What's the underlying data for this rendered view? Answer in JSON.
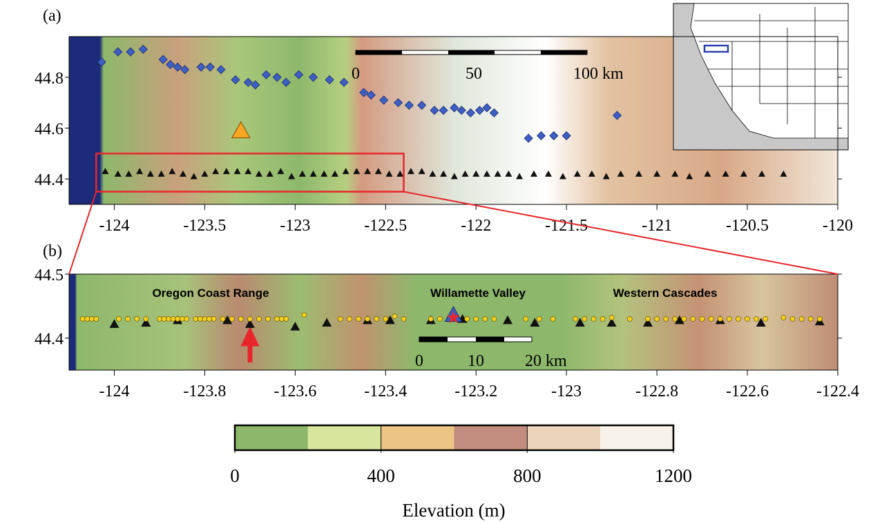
{
  "panel_a": {
    "label": "(a)",
    "xlim": [
      -124.25,
      -120
    ],
    "ylim": [
      44.3,
      44.96
    ],
    "xticks": [
      -124,
      -123.5,
      -123,
      -122.5,
      -122,
      -121.5,
      -121,
      -120.5,
      -120
    ],
    "yticks": [
      44.4,
      44.6,
      44.8
    ],
    "scale_bar": [
      "0",
      "50",
      "100 km"
    ],
    "diamonds": {
      "lon": [
        -124.07,
        -123.98,
        -123.91,
        -123.84,
        -123.73,
        -123.69,
        -123.65,
        -123.61,
        -123.52,
        -123.47,
        -123.41,
        -123.33,
        -123.26,
        -123.22,
        -123.16,
        -123.1,
        -123.05,
        -122.98,
        -122.9,
        -122.81,
        -122.73,
        -122.62,
        -122.58,
        -122.51,
        -122.43,
        -122.37,
        -122.3,
        -122.23,
        -122.18,
        -122.12,
        -122.08,
        -122.03,
        -121.98,
        -121.94,
        -121.9,
        -121.71,
        -121.64,
        -121.57,
        -121.5,
        -121.22
      ],
      "lat": [
        44.86,
        44.9,
        44.9,
        44.91,
        44.87,
        44.85,
        44.84,
        44.83,
        44.84,
        44.84,
        44.83,
        44.79,
        44.78,
        44.77,
        44.81,
        44.8,
        44.78,
        44.81,
        44.8,
        44.79,
        44.78,
        44.74,
        44.73,
        44.71,
        44.7,
        44.69,
        44.69,
        44.67,
        44.67,
        44.68,
        44.67,
        44.66,
        44.67,
        44.68,
        44.66,
        44.56,
        44.57,
        44.57,
        44.57,
        44.65
      ]
    },
    "triangles": {
      "lon": [
        -124.05,
        -123.98,
        -123.92,
        -123.86,
        -123.8,
        -123.74,
        -123.68,
        -123.62,
        -123.56,
        -123.5,
        -123.44,
        -123.38,
        -123.32,
        -123.26,
        -123.2,
        -123.14,
        -123.08,
        -123.02,
        -122.96,
        -122.9,
        -122.84,
        -122.78,
        -122.72,
        -122.66,
        -122.6,
        -122.54,
        -122.48,
        -122.42,
        -122.36,
        -122.3,
        -122.24,
        -122.18,
        -122.12,
        -122.06,
        -122.0,
        -121.94,
        -121.88,
        -121.82,
        -121.76,
        -121.68,
        -121.6,
        -121.52,
        -121.44,
        -121.36,
        -121.28,
        -121.2,
        -121.1,
        -121.0,
        -120.9,
        -120.82,
        -120.72,
        -120.62,
        -120.52,
        -120.42,
        -120.3
      ],
      "lat": [
        44.43,
        44.42,
        44.42,
        44.43,
        44.42,
        44.42,
        44.43,
        44.42,
        44.41,
        44.42,
        44.43,
        44.43,
        44.43,
        44.43,
        44.42,
        44.42,
        44.43,
        44.41,
        44.42,
        44.42,
        44.42,
        44.42,
        44.43,
        44.43,
        44.43,
        44.43,
        44.42,
        44.42,
        44.43,
        44.43,
        44.42,
        44.42,
        44.41,
        44.42,
        44.42,
        44.42,
        44.42,
        44.42,
        44.41,
        44.42,
        44.42,
        44.41,
        44.42,
        44.42,
        44.41,
        44.42,
        44.42,
        44.42,
        44.42,
        44.41,
        44.42,
        44.42,
        44.42,
        44.42,
        44.42
      ]
    },
    "orange_triangle": {
      "lon": -123.3,
      "lat": 44.59
    }
  },
  "panel_b": {
    "label": "(b)",
    "xlim": [
      -124.1,
      -122.4
    ],
    "ylim": [
      44.35,
      44.5
    ],
    "xticks": [
      -124,
      -123.8,
      -123.6,
      -123.4,
      -123.2,
      -123,
      -122.8,
      -122.6,
      -122.4
    ],
    "yticks": [
      44.4,
      44.5
    ],
    "scale_bar": [
      "0",
      "10",
      "20 km"
    ],
    "places": [
      "Oregon Coast Range",
      "Willamette Valley",
      "Western Cascades"
    ],
    "stations": {
      "lon": [
        -124.07,
        -124.06,
        -124.05,
        -124.04,
        -123.99,
        -123.97,
        -123.95,
        -123.93,
        -123.9,
        -123.89,
        -123.88,
        -123.87,
        -123.86,
        -123.85,
        -123.84,
        -123.82,
        -123.81,
        -123.8,
        -123.79,
        -123.78,
        -123.76,
        -123.74,
        -123.72,
        -123.7,
        -123.68,
        -123.66,
        -123.64,
        -123.63,
        -123.62,
        -123.58,
        -123.5,
        -123.48,
        -123.46,
        -123.44,
        -123.42,
        -123.4,
        -123.38,
        -123.36,
        -123.3,
        -123.28,
        -123.26,
        -123.24,
        -123.22,
        -123.2,
        -123.18,
        -123.16,
        -123.09,
        -123.06,
        -123.03,
        -122.98,
        -122.96,
        -122.94,
        -122.92,
        -122.9,
        -122.86,
        -122.82,
        -122.8,
        -122.78,
        -122.76,
        -122.74,
        -122.72,
        -122.7,
        -122.68,
        -122.66,
        -122.64,
        -122.62,
        -122.6,
        -122.58,
        -122.56,
        -122.52,
        -122.5,
        -122.48,
        -122.46,
        -122.44
      ],
      "lat": [
        44.43,
        44.43,
        44.43,
        44.43,
        44.43,
        44.43,
        44.43,
        44.43,
        44.43,
        44.43,
        44.43,
        44.43,
        44.43,
        44.43,
        44.43,
        44.43,
        44.43,
        44.43,
        44.43,
        44.43,
        44.43,
        44.43,
        44.43,
        44.43,
        44.43,
        44.43,
        44.43,
        44.43,
        44.43,
        44.436,
        44.43,
        44.43,
        44.43,
        44.43,
        44.43,
        44.43,
        44.434,
        44.43,
        44.43,
        44.43,
        44.43,
        44.43,
        44.43,
        44.43,
        44.43,
        44.43,
        44.43,
        44.43,
        44.43,
        44.43,
        44.43,
        44.43,
        44.43,
        44.432,
        44.43,
        44.43,
        44.43,
        44.43,
        44.43,
        44.43,
        44.43,
        44.43,
        44.43,
        44.43,
        44.43,
        44.43,
        44.43,
        44.43,
        44.43,
        44.432,
        44.43,
        44.43,
        44.43,
        44.43
      ]
    },
    "triangles": {
      "lon": [
        -124.0,
        -123.93,
        -123.86,
        -123.75,
        -123.7,
        -123.6,
        -123.53,
        -123.44,
        -123.39,
        -123.3,
        -123.23,
        -123.13,
        -123.07,
        -122.97,
        -122.9,
        -122.82,
        -122.75,
        -122.66,
        -122.57,
        -122.44
      ],
      "lat": [
        44.422,
        44.424,
        44.428,
        44.428,
        44.422,
        44.418,
        44.424,
        44.428,
        44.428,
        44.428,
        44.43,
        44.428,
        44.424,
        44.424,
        44.424,
        44.424,
        44.428,
        44.428,
        44.424,
        44.426
      ]
    },
    "source": {
      "lon": -123.25,
      "lat": 44.432
    }
  },
  "colorbar": {
    "clim": [
      0,
      1200
    ],
    "ticks": [
      0,
      400,
      800,
      1200
    ],
    "colors": [
      "#8db86b",
      "#d7e59d",
      "#ecc585",
      "#c28d7e",
      "#ecd4bb",
      "#f8f3ea"
    ],
    "label": "Elevation (m)"
  }
}
